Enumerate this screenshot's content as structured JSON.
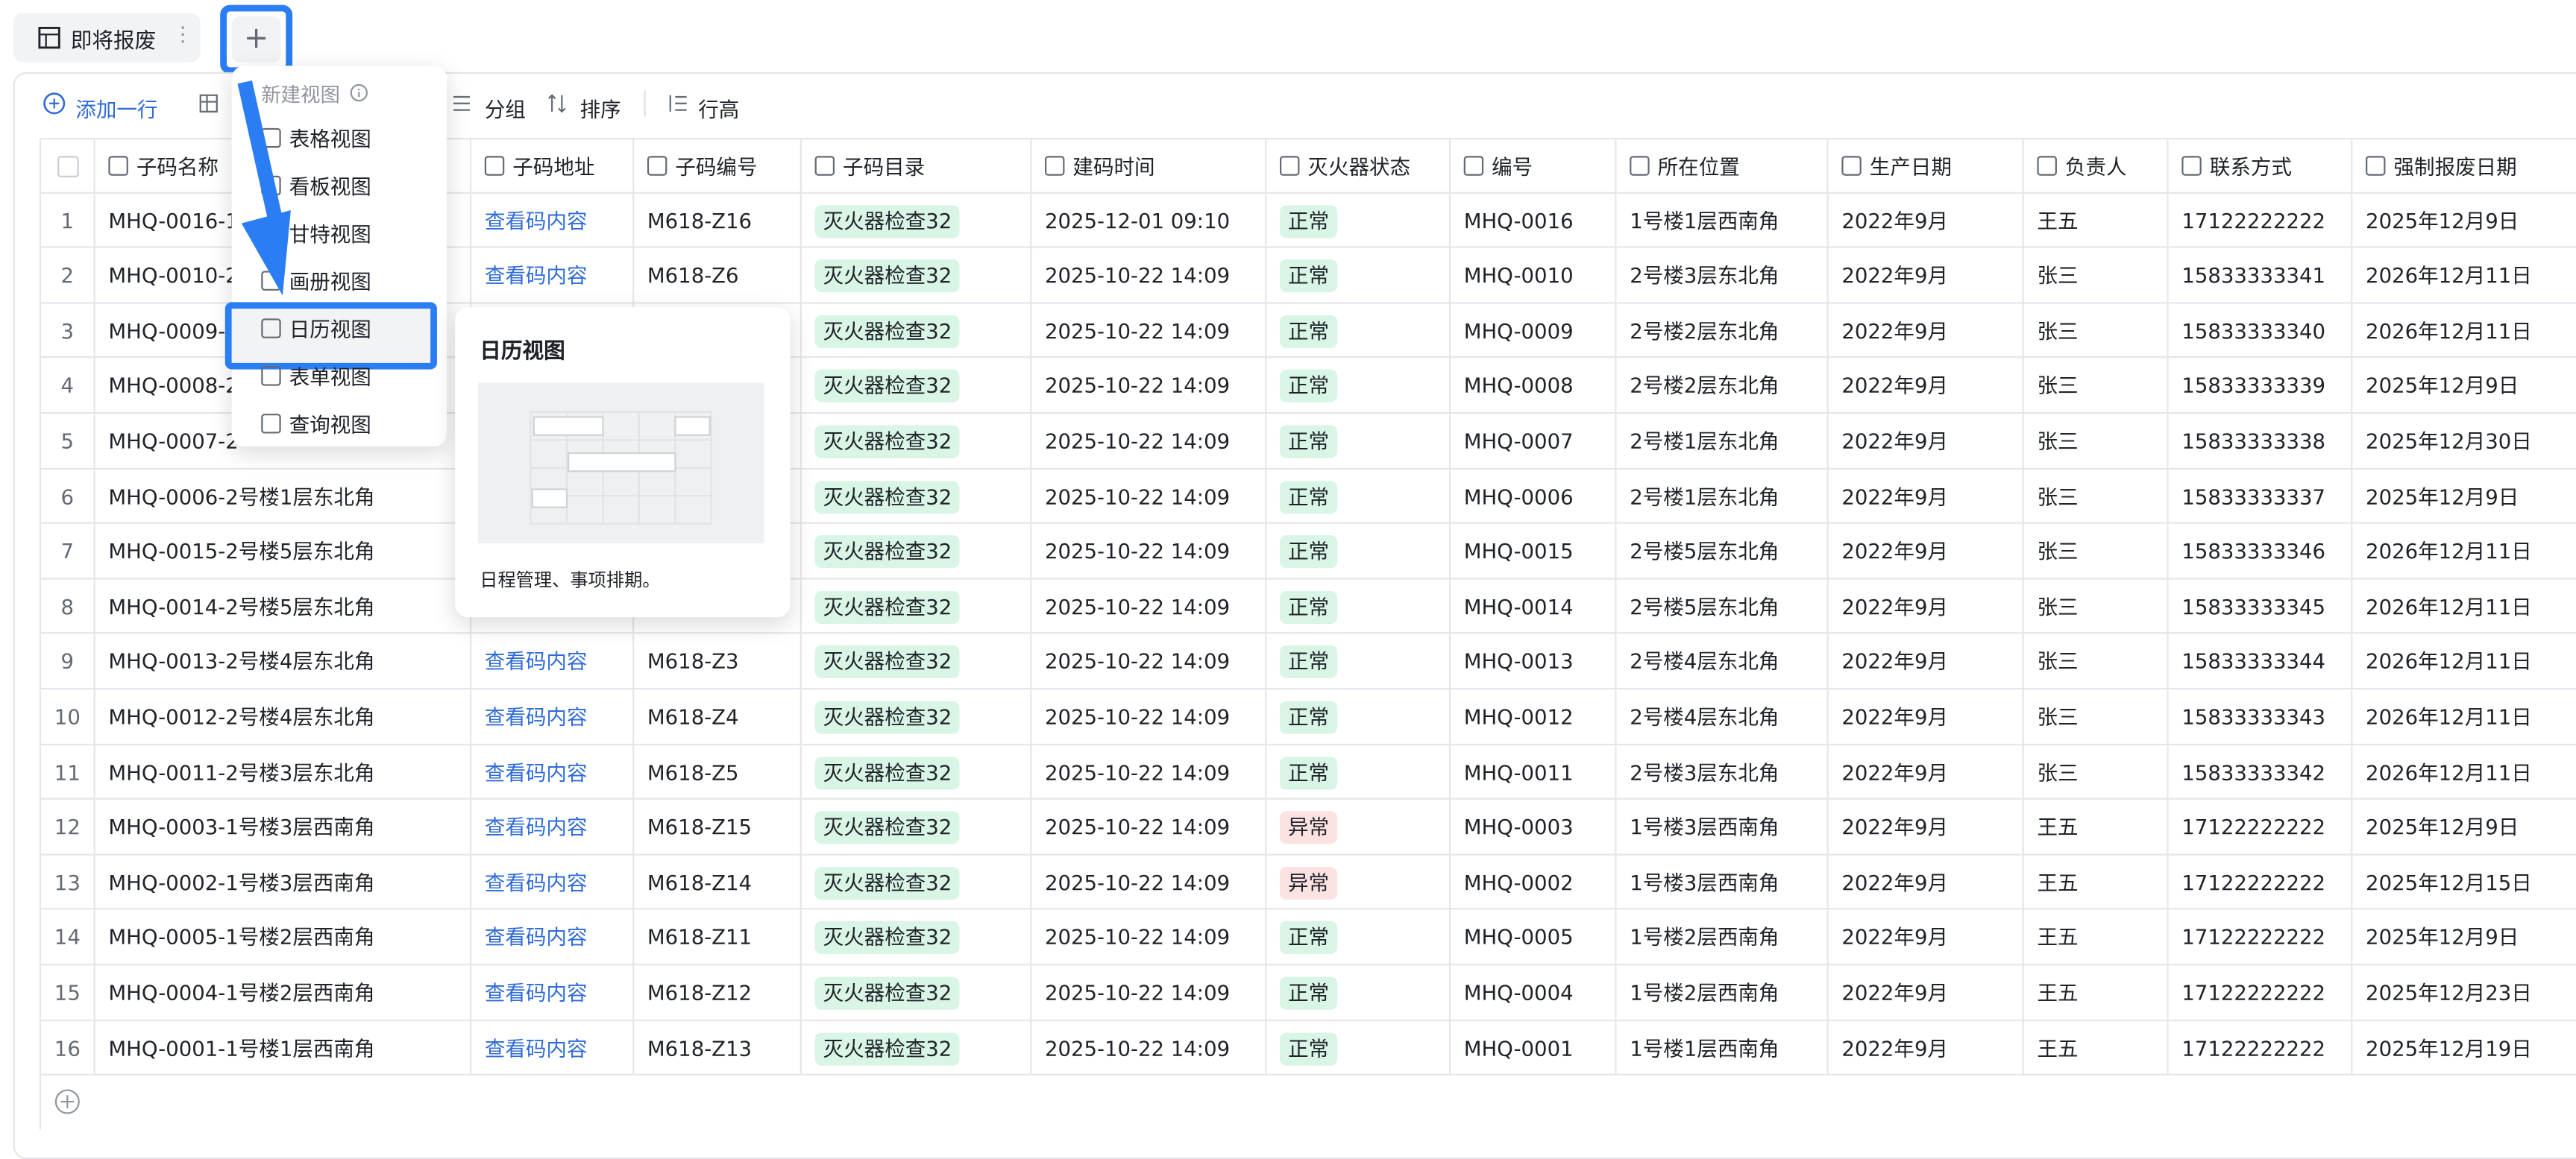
{
  "tab": {
    "name": "即将报废"
  },
  "toolbar": {
    "add_row": "添加一行",
    "group": "分组",
    "sort": "排序",
    "row_height": "行高"
  },
  "table": {
    "columns": [
      "子码名称",
      "子码地址",
      "子码编号",
      "子码目录",
      "建码时间",
      "灭火器状态",
      "编号",
      "所在位置",
      "生产日期",
      "负责人",
      "联系方式",
      "强制报废日期"
    ],
    "rows": [
      {
        "no": 1,
        "cells": [
          "MHQ-0016-1",
          "查看码内容",
          "M618-Z16",
          "灭火器检查32",
          "2025-12-01 09:10",
          "正常",
          "MHQ-0016",
          "1号楼1层西南角",
          "2022年9月",
          "王五",
          "17122222222",
          "2025年12月9日"
        ]
      },
      {
        "no": 2,
        "cells": [
          "MHQ-0010-2",
          "查看码内容",
          "M618-Z6",
          "灭火器检查32",
          "2025-10-22 14:09",
          "正常",
          "MHQ-0010",
          "2号楼3层东北角",
          "2022年9月",
          "张三",
          "15833333341",
          "2026年12月11日"
        ]
      },
      {
        "no": 3,
        "cells": [
          "MHQ-0009-",
          null,
          null,
          "灭火器检查32",
          "2025-10-22 14:09",
          "正常",
          "MHQ-0009",
          "2号楼2层东北角",
          "2022年9月",
          "张三",
          "15833333340",
          "2026年12月11日"
        ]
      },
      {
        "no": 4,
        "cells": [
          "MHQ-0008-2",
          null,
          null,
          "灭火器检查32",
          "2025-10-22 14:09",
          "正常",
          "MHQ-0008",
          "2号楼2层东北角",
          "2022年9月",
          "张三",
          "15833333339",
          "2025年12月9日"
        ]
      },
      {
        "no": 5,
        "cells": [
          "MHQ-0007-2",
          null,
          null,
          "灭火器检查32",
          "2025-10-22 14:09",
          "正常",
          "MHQ-0007",
          "2号楼1层东北角",
          "2022年9月",
          "张三",
          "15833333338",
          "2025年12月30日"
        ]
      },
      {
        "no": 6,
        "cells": [
          "MHQ-0006-2号楼1层东北角",
          null,
          null,
          "灭火器检查32",
          "2025-10-22 14:09",
          "正常",
          "MHQ-0006",
          "2号楼1层东北角",
          "2022年9月",
          "张三",
          "15833333337",
          "2025年12月9日"
        ]
      },
      {
        "no": 7,
        "cells": [
          "MHQ-0015-2号楼5层东北角",
          null,
          null,
          "灭火器检查32",
          "2025-10-22 14:09",
          "正常",
          "MHQ-0015",
          "2号楼5层东北角",
          "2022年9月",
          "张三",
          "15833333346",
          "2026年12月11日"
        ]
      },
      {
        "no": 8,
        "cells": [
          "MHQ-0014-2号楼5层东北角",
          null,
          null,
          "灭火器检查32",
          "2025-10-22 14:09",
          "正常",
          "MHQ-0014",
          "2号楼5层东北角",
          "2022年9月",
          "张三",
          "15833333345",
          "2026年12月11日"
        ]
      },
      {
        "no": 9,
        "cells": [
          "MHQ-0013-2号楼4层东北角",
          "查看码内容",
          "M618-Z3",
          "灭火器检查32",
          "2025-10-22 14:09",
          "正常",
          "MHQ-0013",
          "2号楼4层东北角",
          "2022年9月",
          "张三",
          "15833333344",
          "2026年12月11日"
        ]
      },
      {
        "no": 10,
        "cells": [
          "MHQ-0012-2号楼4层东北角",
          "查看码内容",
          "M618-Z4",
          "灭火器检查32",
          "2025-10-22 14:09",
          "正常",
          "MHQ-0012",
          "2号楼4层东北角",
          "2022年9月",
          "张三",
          "15833333343",
          "2026年12月11日"
        ]
      },
      {
        "no": 11,
        "cells": [
          "MHQ-0011-2号楼3层东北角",
          "查看码内容",
          "M618-Z5",
          "灭火器检查32",
          "2025-10-22 14:09",
          "正常",
          "MHQ-0011",
          "2号楼3层东北角",
          "2022年9月",
          "张三",
          "15833333342",
          "2026年12月11日"
        ]
      },
      {
        "no": 12,
        "cells": [
          "MHQ-0003-1号楼3层西南角",
          "查看码内容",
          "M618-Z15",
          "灭火器检查32",
          "2025-10-22 14:09",
          "异常",
          "MHQ-0003",
          "1号楼3层西南角",
          "2022年9月",
          "王五",
          "17122222222",
          "2025年12月9日"
        ]
      },
      {
        "no": 13,
        "cells": [
          "MHQ-0002-1号楼3层西南角",
          "查看码内容",
          "M618-Z14",
          "灭火器检查32",
          "2025-10-22 14:09",
          "异常",
          "MHQ-0002",
          "1号楼3层西南角",
          "2022年9月",
          "王五",
          "17122222222",
          "2025年12月15日"
        ]
      },
      {
        "no": 14,
        "cells": [
          "MHQ-0005-1号楼2层西南角",
          "查看码内容",
          "M618-Z11",
          "灭火器检查32",
          "2025-10-22 14:09",
          "正常",
          "MHQ-0005",
          "1号楼2层西南角",
          "2022年9月",
          "王五",
          "17122222222",
          "2025年12月9日"
        ]
      },
      {
        "no": 15,
        "cells": [
          "MHQ-0004-1号楼2层西南角",
          "查看码内容",
          "M618-Z12",
          "灭火器检查32",
          "2025-10-22 14:09",
          "正常",
          "MHQ-0004",
          "1号楼2层西南角",
          "2022年9月",
          "王五",
          "17122222222",
          "2025年12月23日"
        ]
      },
      {
        "no": 16,
        "cells": [
          "MHQ-0001-1号楼1层西南角",
          "查看码内容",
          "M618-Z13",
          "灭火器检查32",
          "2025-10-22 14:09",
          "正常",
          "MHQ-0001",
          "1号楼1层西南角",
          "2022年9月",
          "王五",
          "17122222222",
          "2025年12月19日"
        ]
      }
    ]
  },
  "menu": {
    "header": "新建视图",
    "items": [
      "表格视图",
      "看板视图",
      "甘特视图",
      "画册视图",
      "日历视图",
      "表单视图",
      "查询视图"
    ],
    "selected": 4
  },
  "popover": {
    "title": "日历视图",
    "description": "日程管理、事项排期。"
  }
}
